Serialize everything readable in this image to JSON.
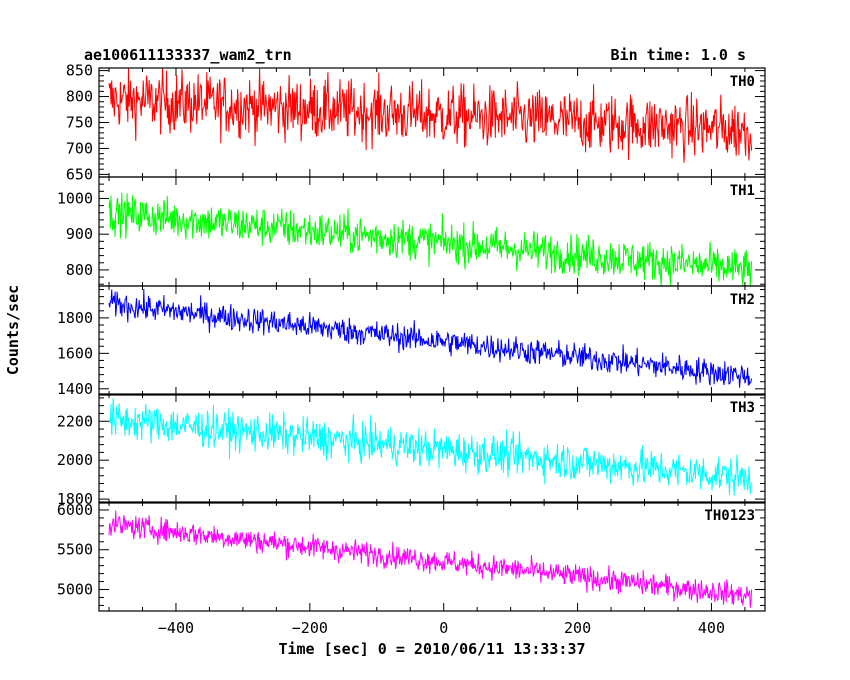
{
  "chart_data": {
    "type": "line",
    "title": "ae100611133337_wam2_trn",
    "bin_time_label": "Bin time: 1.0 s",
    "xlabel": "Time [sec] 0 = 2010/06/11 13:33:37",
    "ylabel": "Counts/sec",
    "xlim": [
      -515,
      480
    ],
    "x_ticks": [
      -400,
      -200,
      0,
      200,
      400
    ],
    "x_tick_labels": [
      "−400",
      "−200",
      "0",
      "200",
      "400"
    ],
    "x_data_range": [
      -500,
      460
    ],
    "x_step": 1.0,
    "grid": false,
    "series": [
      {
        "name": "TH0",
        "color": "#ff0000",
        "ylim": [
          645,
          855
        ],
        "yticks": [
          650,
          700,
          750,
          800,
          850
        ],
        "trend_start": 795,
        "trend_end": 735,
        "noise": 30
      },
      {
        "name": "TH1",
        "color": "#00ff00",
        "ylim": [
          755,
          1060
        ],
        "yticks": [
          800,
          900,
          1000
        ],
        "trend_start": 960,
        "trend_end": 800,
        "noise": 28
      },
      {
        "name": "TH2",
        "color": "#0000ff",
        "ylim": [
          1365,
          1980
        ],
        "yticks": [
          1400,
          1600,
          1800
        ],
        "trend_start": 1880,
        "trend_end": 1470,
        "noise": 38
      },
      {
        "name": "TH3",
        "color": "#00ffff",
        "ylim": [
          1780,
          2340
        ],
        "yticks": [
          1800,
          2000,
          2200
        ],
        "trend_start": 2210,
        "trend_end": 1910,
        "noise": 50
      },
      {
        "name": "TH0123",
        "color": "#ff00ff",
        "ylim": [
          4730,
          6100
        ],
        "yticks": [
          5000,
          5500,
          6000
        ],
        "trend_start": 5820,
        "trend_end": 4920,
        "noise": 75
      }
    ]
  }
}
